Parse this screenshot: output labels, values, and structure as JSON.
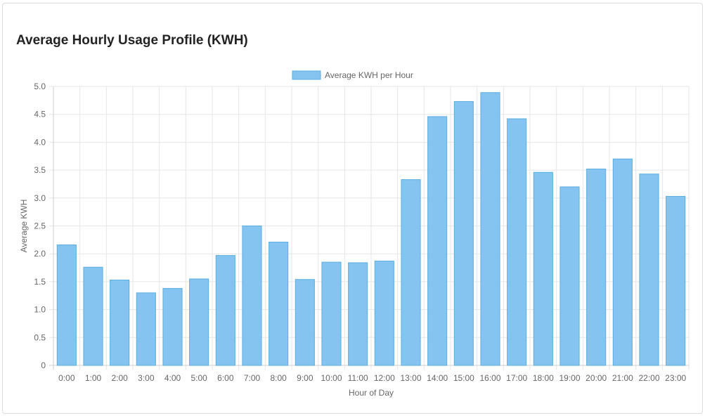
{
  "card": {
    "title": "Average Hourly Usage Profile (KWH)"
  },
  "chart_data": {
    "type": "bar",
    "title": "",
    "xlabel": "Hour of Day",
    "ylabel": "Average KWH",
    "ylim": [
      0,
      5
    ],
    "y_ticks": [
      "0",
      "0.5",
      "1.0",
      "1.5",
      "2.0",
      "2.5",
      "3.0",
      "3.5",
      "4.0",
      "4.5",
      "5.0"
    ],
    "grid": true,
    "legend_position": "top-center",
    "categories": [
      "0:00",
      "1:00",
      "2:00",
      "3:00",
      "4:00",
      "5:00",
      "6:00",
      "7:00",
      "8:00",
      "9:00",
      "10:00",
      "11:00",
      "12:00",
      "13:00",
      "14:00",
      "15:00",
      "16:00",
      "17:00",
      "18:00",
      "19:00",
      "20:00",
      "21:00",
      "22:00",
      "23:00"
    ],
    "series": [
      {
        "name": "Average KWH per Hour",
        "color": "#85c4f0",
        "border_color": "#5aaedf",
        "values": [
          2.16,
          1.76,
          1.53,
          1.3,
          1.38,
          1.55,
          1.97,
          2.5,
          2.21,
          1.54,
          1.85,
          1.84,
          1.87,
          3.33,
          4.46,
          4.73,
          4.89,
          4.42,
          3.46,
          3.2,
          3.52,
          3.7,
          3.43,
          3.03
        ]
      }
    ]
  }
}
